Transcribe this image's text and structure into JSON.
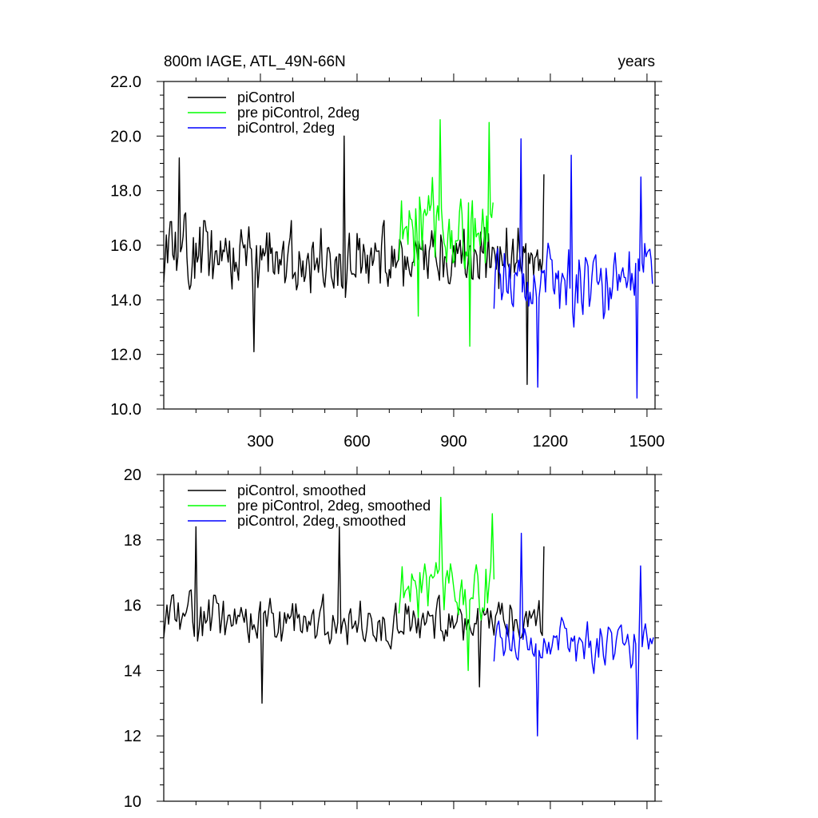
{
  "chart_data": [
    {
      "type": "line",
      "title": "800m IAGE, ATL_49N-66N",
      "units_label": "years",
      "xlabel": "",
      "ylabel": "",
      "xlim": [
        0,
        1525
      ],
      "ylim": [
        10.0,
        22.0
      ],
      "x_ticks": [
        300,
        600,
        900,
        1200,
        1500
      ],
      "x_tick_labels": [
        "300",
        "600",
        "900",
        "1200",
        "1500"
      ],
      "y_ticks": [
        10,
        12,
        14,
        16,
        18,
        20,
        22
      ],
      "y_tick_labels": [
        "10.0",
        "12.0",
        "14.0",
        "16.0",
        "18.0",
        "20.0",
        "22.0"
      ],
      "legend_position": "top-left",
      "series": [
        {
          "name": "piControl",
          "color": "#000000",
          "x_range": [
            0,
            1180
          ],
          "mean": 15.5,
          "amplitude": 1.5,
          "noise": 1.2,
          "peaks": [
            [
              50,
              19.2
            ],
            [
              280,
              12.1
            ],
            [
              560,
              20.0
            ],
            [
              1130,
              10.9
            ],
            [
              1180,
              18.6
            ]
          ],
          "seed": 11
        },
        {
          "name": "pre piControl, 2deg",
          "color": "#00ff00",
          "x_range": [
            730,
            1025
          ],
          "mean": 16.6,
          "amplitude": 1.8,
          "noise": 1.4,
          "peaks": [
            [
              860,
              20.6
            ],
            [
              1010,
              20.5
            ],
            [
              950,
              12.3
            ],
            [
              790,
              13.4
            ]
          ],
          "seed": 23
        },
        {
          "name": "piControl, 2deg",
          "color": "#0000ff",
          "x_range": [
            1025,
            1520
          ],
          "mean": 14.6,
          "amplitude": 1.6,
          "noise": 1.3,
          "peaks": [
            [
              1110,
              19.9
            ],
            [
              1265,
              19.3
            ],
            [
              1160,
              10.8
            ],
            [
              1470,
              10.4
            ],
            [
              1480,
              18.5
            ]
          ],
          "seed": 37
        }
      ]
    },
    {
      "type": "line",
      "title": "",
      "xlabel": "",
      "ylabel": "",
      "xlim": [
        0,
        1525
      ],
      "ylim": [
        10,
        20
      ],
      "x_ticks": [
        300,
        600,
        900,
        1200,
        1500
      ],
      "y_ticks": [
        10,
        12,
        14,
        16,
        18,
        20
      ],
      "y_tick_labels": [
        "10",
        "12",
        "14",
        "16",
        "18",
        "20"
      ],
      "legend_position": "top-left",
      "series": [
        {
          "name": "piControl, smoothed",
          "color": "#000000",
          "x_range": [
            0,
            1180
          ],
          "mean": 15.5,
          "amplitude": 0.9,
          "noise": 0.6,
          "peaks": [
            [
              100,
              18.4
            ],
            [
              545,
              18.4
            ],
            [
              305,
              13.0
            ],
            [
              980,
              13.5
            ],
            [
              1180,
              17.8
            ]
          ],
          "seed": 11
        },
        {
          "name": "pre piControl, 2deg, smoothed",
          "color": "#00ff00",
          "x_range": [
            730,
            1025
          ],
          "mean": 16.5,
          "amplitude": 1.2,
          "noise": 0.8,
          "peaks": [
            [
              860,
              19.3
            ],
            [
              1020,
              18.8
            ],
            [
              945,
              14.0
            ]
          ],
          "seed": 23
        },
        {
          "name": "piControl, 2deg, smoothed",
          "color": "#0000ff",
          "x_range": [
            1025,
            1520
          ],
          "mean": 14.8,
          "amplitude": 0.9,
          "noise": 0.7,
          "peaks": [
            [
              1110,
              18.2
            ],
            [
              1160,
              12.0
            ],
            [
              1470,
              11.9
            ],
            [
              1480,
              17.2
            ]
          ],
          "seed": 37
        }
      ]
    }
  ]
}
